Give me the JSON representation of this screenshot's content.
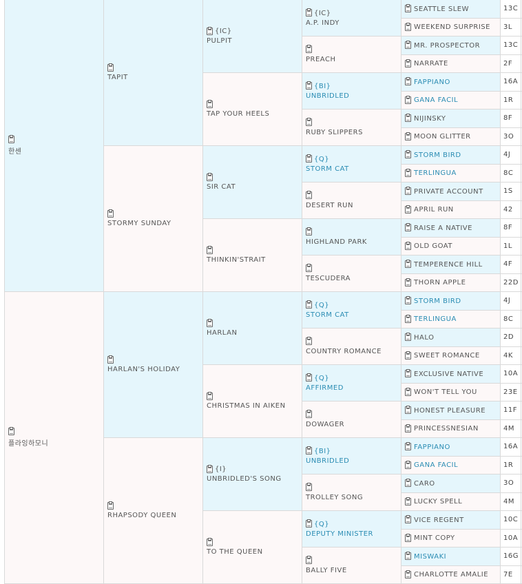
{
  "pedigree": {
    "g1": [
      {
        "name": "한센",
        "sex": "male"
      },
      {
        "name": "플라잉하모니",
        "sex": "female"
      }
    ],
    "g2": [
      {
        "name": "TAPIT",
        "sex": "male"
      },
      {
        "name": "STORMY SUNDAY",
        "sex": "female"
      },
      {
        "name": "HARLAN'S HOLIDAY",
        "sex": "male"
      },
      {
        "name": "RHAPSODY QUEEN",
        "sex": "female"
      }
    ],
    "g3": [
      {
        "name": "PULPIT",
        "sex": "male",
        "class": "{IC}"
      },
      {
        "name": "TAP YOUR HEELS",
        "sex": "female",
        "class": ""
      },
      {
        "name": "SIR CAT",
        "sex": "male",
        "class": ""
      },
      {
        "name": "THINKIN'STRAIT",
        "sex": "female",
        "class": ""
      },
      {
        "name": "HARLAN",
        "sex": "male",
        "class": ""
      },
      {
        "name": "CHRISTMAS IN AIKEN",
        "sex": "female",
        "class": ""
      },
      {
        "name": "UNBRIDLED'S SONG",
        "sex": "male",
        "class": "{I}"
      },
      {
        "name": "TO THE QUEEN",
        "sex": "female",
        "class": ""
      }
    ],
    "g4": [
      {
        "name": "A.P. INDY",
        "sex": "male",
        "class": "{IC}",
        "blue": false
      },
      {
        "name": "PREACH",
        "sex": "female",
        "class": "",
        "blue": false
      },
      {
        "name": "UNBRIDLED",
        "sex": "male",
        "class": "{BI}",
        "blue": true
      },
      {
        "name": "RUBY SLIPPERS",
        "sex": "female",
        "class": "",
        "blue": false
      },
      {
        "name": "STORM CAT",
        "sex": "male",
        "class": "{Q}",
        "blue": true
      },
      {
        "name": "DESERT RUN",
        "sex": "female",
        "class": "",
        "blue": false
      },
      {
        "name": "HIGHLAND PARK",
        "sex": "male",
        "class": "",
        "blue": false
      },
      {
        "name": "TESCUDERA",
        "sex": "female",
        "class": "",
        "blue": false
      },
      {
        "name": "STORM CAT",
        "sex": "male",
        "class": "{Q}",
        "blue": true
      },
      {
        "name": "COUNTRY ROMANCE",
        "sex": "female",
        "class": "",
        "blue": false
      },
      {
        "name": "AFFIRMED",
        "sex": "male",
        "class": "{Q}",
        "blue": true
      },
      {
        "name": "DOWAGER",
        "sex": "female",
        "class": "",
        "blue": false
      },
      {
        "name": "UNBRIDLED",
        "sex": "male",
        "class": "{BI}",
        "blue": true
      },
      {
        "name": "TROLLEY SONG",
        "sex": "female",
        "class": "",
        "blue": false
      },
      {
        "name": "DEPUTY MINISTER",
        "sex": "male",
        "class": "{Q}",
        "blue": true
      },
      {
        "name": "BALLY FIVE",
        "sex": "female",
        "class": "",
        "blue": false
      }
    ],
    "g5": [
      {
        "name": "SEATTLE SLEW",
        "sex": "male",
        "blue": false,
        "num": "13C"
      },
      {
        "name": "WEEKEND SURPRISE",
        "sex": "female",
        "blue": false,
        "num": "3L"
      },
      {
        "name": "MR. PROSPECTOR",
        "sex": "male",
        "blue": false,
        "num": "13C"
      },
      {
        "name": "NARRATE",
        "sex": "female",
        "blue": false,
        "num": "2F"
      },
      {
        "name": "FAPPIANO",
        "sex": "male",
        "blue": true,
        "num": "16A"
      },
      {
        "name": "GANA FACIL",
        "sex": "female",
        "blue": true,
        "num": "1R"
      },
      {
        "name": "NIJINSKY",
        "sex": "male",
        "blue": false,
        "num": "8F"
      },
      {
        "name": "MOON GLITTER",
        "sex": "female",
        "blue": false,
        "num": "3O"
      },
      {
        "name": "STORM BIRD",
        "sex": "male",
        "blue": true,
        "num": "4J"
      },
      {
        "name": "TERLINGUA",
        "sex": "female",
        "blue": true,
        "num": "8C"
      },
      {
        "name": "PRIVATE ACCOUNT",
        "sex": "male",
        "blue": false,
        "num": "1S"
      },
      {
        "name": "APRIL RUN",
        "sex": "female",
        "blue": false,
        "num": "42"
      },
      {
        "name": "RAISE A NATIVE",
        "sex": "male",
        "blue": false,
        "num": "8F"
      },
      {
        "name": "OLD GOAT",
        "sex": "female",
        "blue": false,
        "num": "1L"
      },
      {
        "name": "TEMPERENCE HILL",
        "sex": "male",
        "blue": false,
        "num": "4F"
      },
      {
        "name": "THORN APPLE",
        "sex": "female",
        "blue": false,
        "num": "22D"
      },
      {
        "name": "STORM BIRD",
        "sex": "male",
        "blue": true,
        "num": "4J"
      },
      {
        "name": "TERLINGUA",
        "sex": "female",
        "blue": true,
        "num": "8C"
      },
      {
        "name": "HALO",
        "sex": "male",
        "blue": false,
        "num": "2D"
      },
      {
        "name": "SWEET ROMANCE",
        "sex": "female",
        "blue": false,
        "num": "4K"
      },
      {
        "name": "EXCLUSIVE NATIVE",
        "sex": "male",
        "blue": false,
        "num": "10A"
      },
      {
        "name": "WON'T TELL YOU",
        "sex": "female",
        "blue": false,
        "num": "23E"
      },
      {
        "name": "HONEST PLEASURE",
        "sex": "male",
        "blue": false,
        "num": "11F"
      },
      {
        "name": "PRINCESSNESIAN",
        "sex": "female",
        "blue": false,
        "num": "4M"
      },
      {
        "name": "FAPPIANO",
        "sex": "male",
        "blue": true,
        "num": "16A"
      },
      {
        "name": "GANA FACIL",
        "sex": "female",
        "blue": true,
        "num": "1R"
      },
      {
        "name": "CARO",
        "sex": "male",
        "blue": false,
        "num": "3O"
      },
      {
        "name": "LUCKY SPELL",
        "sex": "female",
        "blue": false,
        "num": "4M"
      },
      {
        "name": "VICE REGENT",
        "sex": "male",
        "blue": false,
        "num": "10C"
      },
      {
        "name": "MINT COPY",
        "sex": "female",
        "blue": false,
        "num": "10A"
      },
      {
        "name": "MISWAKI",
        "sex": "male",
        "blue": true,
        "num": "16G"
      },
      {
        "name": "CHARLOTTE AMALIE",
        "sex": "female",
        "blue": false,
        "num": "7E"
      }
    ]
  },
  "colors": {
    "male_bg": "#e5f6fc",
    "female_bg": "#fdf8f8",
    "link_blue": "#2a8cb3",
    "border": "#d9d9d9"
  },
  "icons": {
    "horse_info": "clipboard-icon",
    "tail": "circle-icon"
  }
}
